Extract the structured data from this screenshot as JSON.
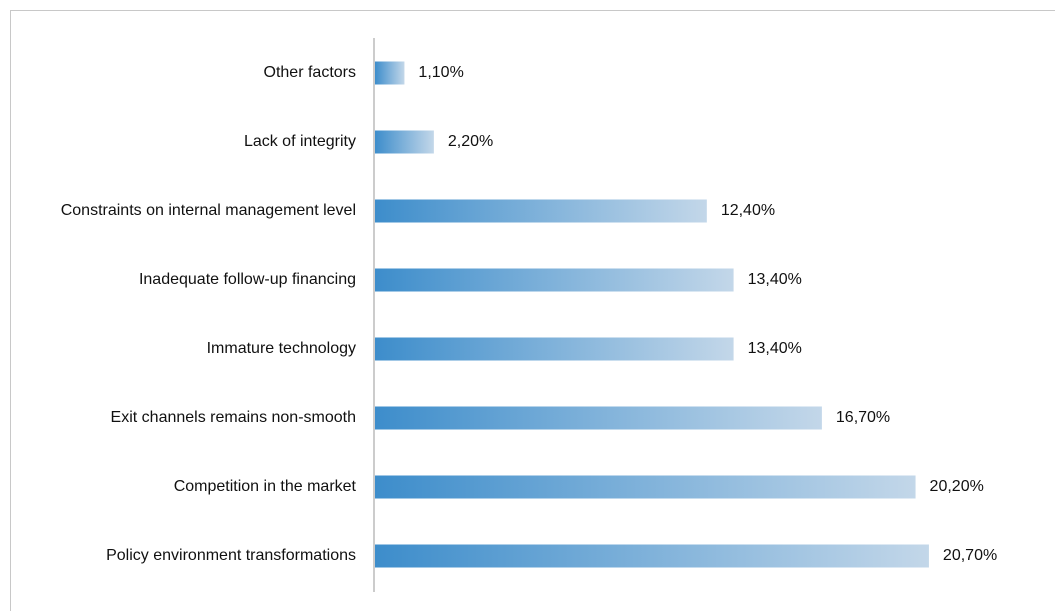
{
  "chart_data": {
    "type": "bar",
    "orientation": "horizontal",
    "categories": [
      "Other factors",
      "Lack of integrity",
      "Constraints on internal management level",
      "Inadequate follow-up financing",
      "Immature technology",
      "Exit channels remains non-smooth",
      "Competition in the market",
      "Policy environment transformations"
    ],
    "values": [
      1.1,
      2.2,
      12.4,
      13.4,
      13.4,
      16.7,
      20.2,
      20.7
    ],
    "value_labels": [
      "1,10%",
      "2,20%",
      "12,40%",
      "13,40%",
      "13,40%",
      "16,70%",
      "20,20%",
      "20,70%"
    ],
    "color": [
      "#3d8dcb",
      "#c3d7e9"
    ]
  }
}
